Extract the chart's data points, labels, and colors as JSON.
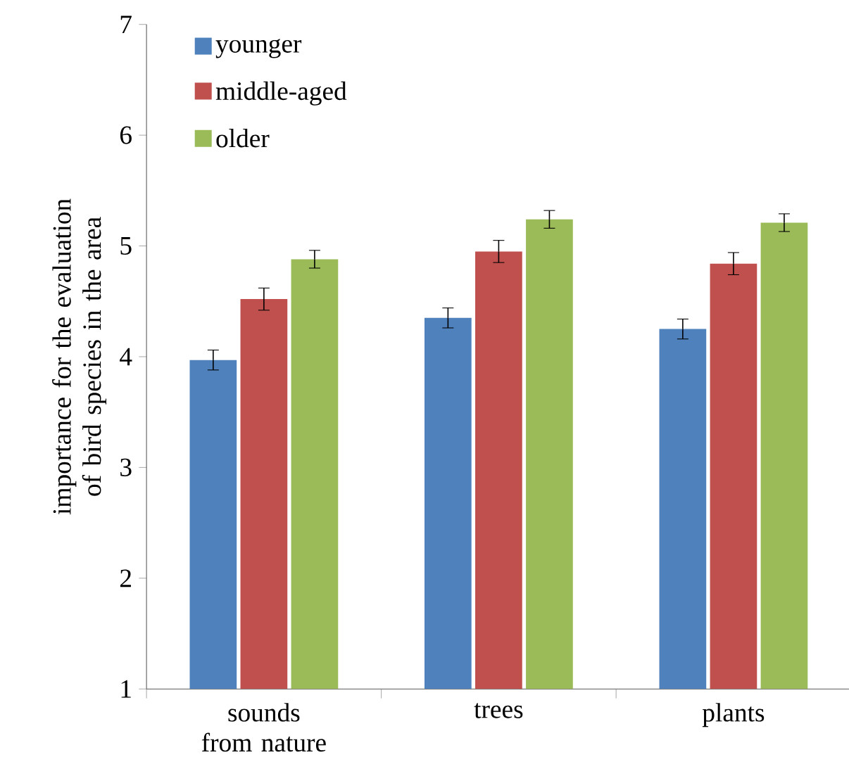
{
  "chart_data": {
    "type": "bar",
    "ylabel": "importance for the evaluation of bird species in the area",
    "categories": [
      "sounds from nature",
      "trees",
      "plants"
    ],
    "series": [
      {
        "name": "younger",
        "color": "#4f81bd",
        "values": [
          3.97,
          4.35,
          4.25
        ],
        "errors": [
          0.09,
          0.09,
          0.09
        ]
      },
      {
        "name": "middle-aged",
        "color": "#c0504d",
        "values": [
          4.52,
          4.95,
          4.84
        ],
        "errors": [
          0.1,
          0.1,
          0.1
        ]
      },
      {
        "name": "older",
        "color": "#9bbb59",
        "values": [
          4.88,
          5.24,
          5.21
        ],
        "errors": [
          0.08,
          0.08,
          0.08
        ]
      }
    ],
    "ylim": [
      1,
      7
    ],
    "yticks": [
      1,
      2,
      3,
      4,
      5,
      6,
      7
    ],
    "legend": "top left",
    "grid": false
  }
}
